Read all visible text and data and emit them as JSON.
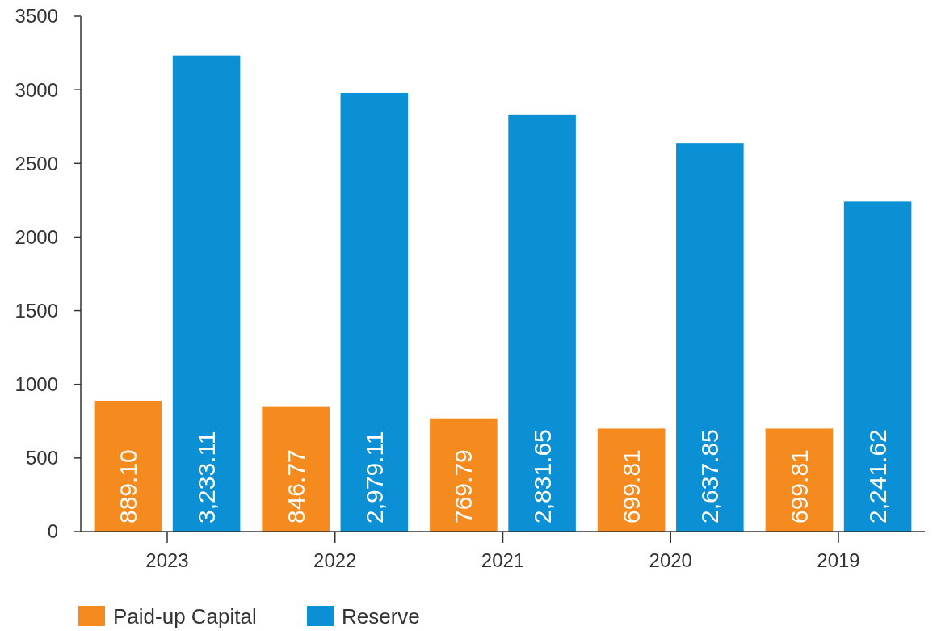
{
  "chart_data": {
    "type": "bar",
    "categories": [
      "2023",
      "2022",
      "2021",
      "2020",
      "2019"
    ],
    "series": [
      {
        "name": "Paid-up Capital",
        "color": "#f58a1f",
        "values": [
          889.1,
          846.77,
          769.79,
          699.81,
          699.81
        ],
        "value_labels": [
          "889.10",
          "846.77",
          "769.79",
          "699.81",
          "699.81"
        ]
      },
      {
        "name": "Reserve",
        "color": "#0b8fd5",
        "values": [
          3233.11,
          2979.11,
          2831.65,
          2637.85,
          2241.62
        ],
        "value_labels": [
          "3,233.11",
          "2,979.11",
          "2,831.65",
          "2,637.85",
          "2,241.62"
        ]
      }
    ],
    "ylim": [
      0,
      3500
    ],
    "yticks": [
      0,
      500,
      1000,
      1500,
      2000,
      2500,
      3000,
      3500
    ],
    "grid": false,
    "legend": "bottom"
  }
}
